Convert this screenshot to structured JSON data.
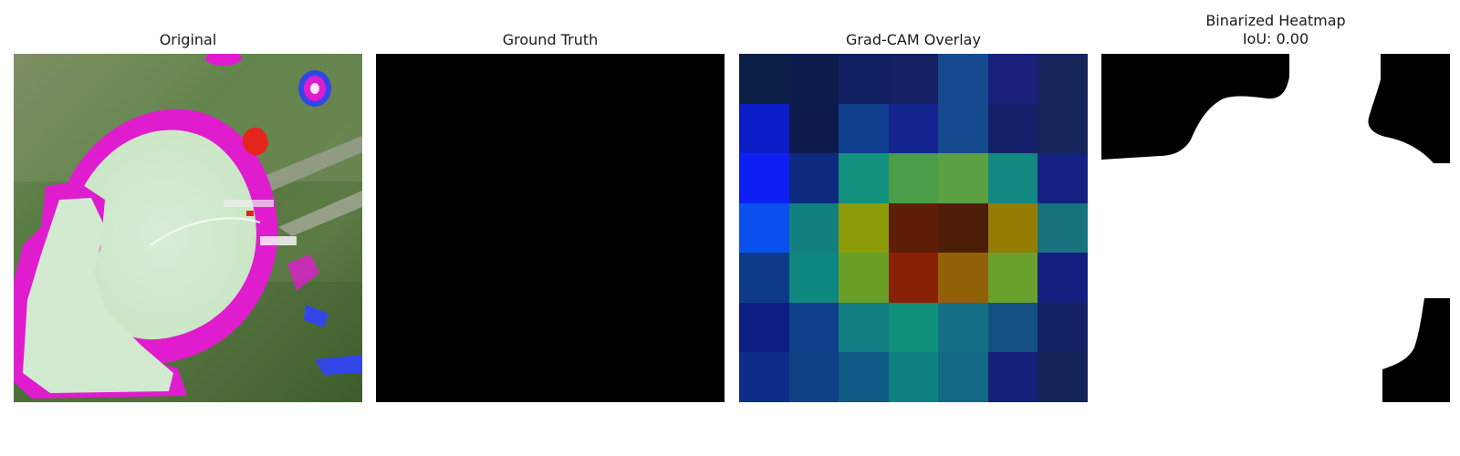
{
  "figure": {
    "panels": [
      {
        "title": "Original"
      },
      {
        "title": "Ground Truth"
      },
      {
        "title": "Grad-CAM Overlay"
      },
      {
        "title": "Binarized Heatmap\nIoU: 0.00"
      }
    ],
    "gradcam": {
      "grid_size": 7,
      "cells": [
        [
          "#0c1f45",
          "#0c1d4d",
          "#0f1f5f",
          "#132061",
          "#164a8f",
          "#18207a",
          "#15245a"
        ],
        [
          "#0c1dc8",
          "#0d1a4c",
          "#103f8e",
          "#142590",
          "#164a8f",
          "#14216a",
          "#152459"
        ],
        [
          "#0e1ff6",
          "#0d2a80",
          "#11907d",
          "#4a9c47",
          "#5ba143",
          "#128883",
          "#142182"
        ],
        [
          "#0a4fef",
          "#11807f",
          "#8c9c09",
          "#5e1e05",
          "#4c1e08",
          "#957d04",
          "#16737e"
        ],
        [
          "#0e3b87",
          "#0e877f",
          "#6a9f26",
          "#892107",
          "#926107",
          "#6aa12d",
          "#142080"
        ],
        [
          "#0d1e82",
          "#0f3e8a",
          "#127d82",
          "#0f907b",
          "#126f84",
          "#125082",
          "#132264"
        ],
        [
          "#0e2d89",
          "#0f4285",
          "#105a86",
          "#0f8081",
          "#126986",
          "#14207b",
          "#142458"
        ]
      ]
    }
  }
}
